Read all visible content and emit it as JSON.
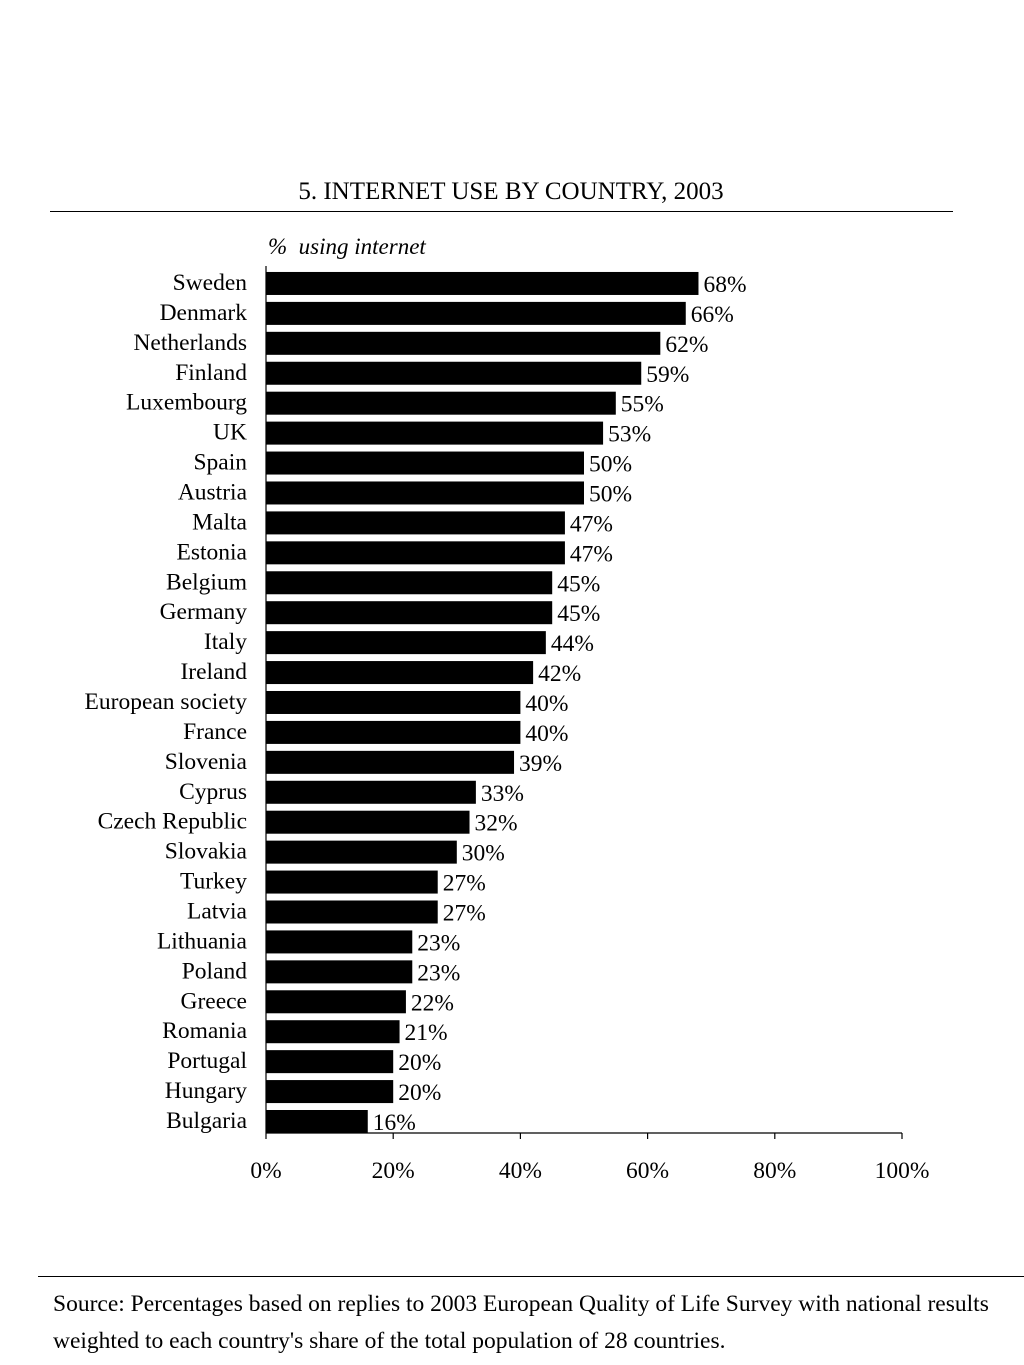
{
  "chart_data": {
    "type": "bar",
    "orientation": "horizontal",
    "title": "5. INTERNET USE BY COUNTRY, 2003",
    "ylabel": "%  using internet",
    "categories": [
      "Sweden",
      "Denmark",
      "Netherlands",
      "Finland",
      "Luxembourg",
      "UK",
      "Spain",
      "Austria",
      "Malta",
      "Estonia",
      "Belgium",
      "Germany",
      "Italy",
      "Ireland",
      "European society",
      "France",
      "Slovenia",
      "Cyprus",
      "Czech Republic",
      "Slovakia",
      "Turkey",
      "Latvia",
      "Lithuania",
      "Poland",
      "Greece",
      "Romania",
      "Portugal",
      "Hungary",
      "Bulgaria"
    ],
    "values": [
      68,
      66,
      62,
      59,
      55,
      53,
      50,
      50,
      47,
      47,
      45,
      45,
      44,
      42,
      40,
      40,
      39,
      33,
      32,
      30,
      27,
      27,
      23,
      23,
      22,
      21,
      20,
      20,
      16
    ],
    "data_labels": [
      "68%",
      "66%",
      "62%",
      "59%",
      "55%",
      "53%",
      "50%",
      "50%",
      "47%",
      "47%",
      "45%",
      "45%",
      "44%",
      "42%",
      "40%",
      "40%",
      "39%",
      "33%",
      "32%",
      "30%",
      "27%",
      "27%",
      "23%",
      "23%",
      "22%",
      "21%",
      "20%",
      "20%",
      "16%"
    ],
    "xlim": [
      0,
      100
    ],
    "x_ticks": [
      0,
      20,
      40,
      60,
      80,
      100
    ],
    "x_tick_labels": [
      "0%",
      "20%",
      "40%",
      "60%",
      "80%",
      "100%"
    ],
    "grid": false,
    "legend": "none",
    "bar_color": "#000000"
  },
  "source_note": "Source: Percentages based on replies to 2003 European Quality of Life Survey  with national results weighted to each country's share of the total population of 28 countries."
}
